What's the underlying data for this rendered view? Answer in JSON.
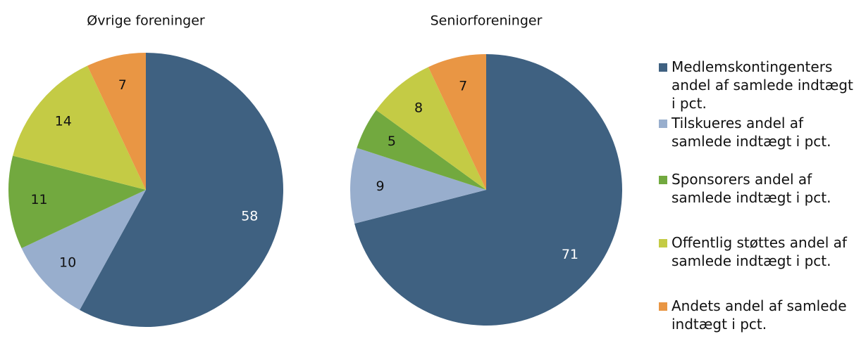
{
  "chart_data": [
    {
      "type": "pie",
      "title": "Øvrige foreninger",
      "values": [
        58,
        10,
        11,
        14,
        7
      ]
    },
    {
      "type": "pie",
      "title": "Seniorforeninger",
      "values": [
        71,
        9,
        5,
        8,
        7
      ]
    }
  ],
  "legend": {
    "categories": [
      "Medlemskontingenters andel af samlede indtægt i pct.",
      "Tilskueres andel af samlede indtægt i pct.",
      "Sponsorers andel af samlede indtægt i pct.",
      "Offentlig støttes andel af samlede indtægt i pct.",
      "Andets andel af samlede indtægt i pct."
    ],
    "colors": [
      "#3f6181",
      "#98aecd",
      "#72a93f",
      "#c4cb45",
      "#e99644"
    ]
  }
}
